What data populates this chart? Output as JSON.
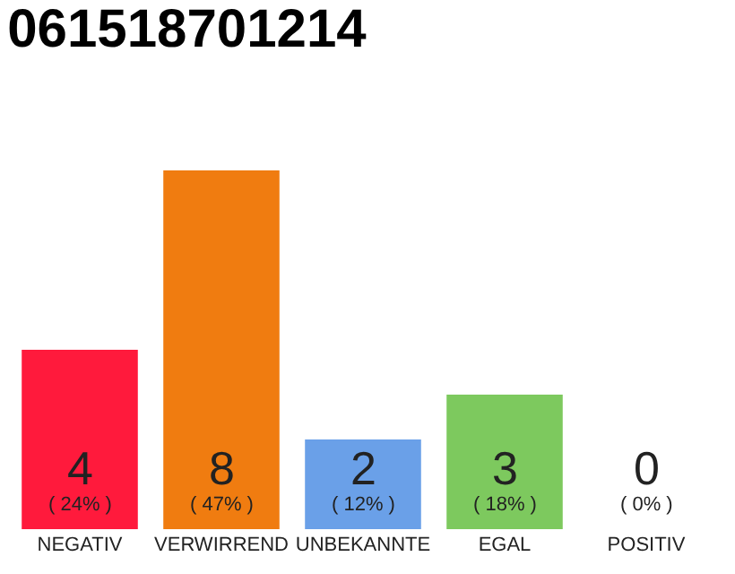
{
  "chart_data": {
    "type": "bar",
    "title": "061518701214",
    "categories": [
      "NEGATIV",
      "VERWIRREND",
      "UNBEKANNTE",
      "EGAL",
      "POSITIV"
    ],
    "values": [
      4,
      8,
      2,
      3,
      0
    ],
    "colors": [
      "#ff1a3c",
      "#f07c10",
      "#6aa0e8",
      "#7dc95e",
      "#eeeeee"
    ],
    "value_labels": [
      "4\n( 24% )",
      "8\n( 47% )",
      "2\n( 12% )",
      "3\n( 18% )",
      "0\n( 0% )"
    ],
    "ylim": [
      0,
      8
    ],
    "tick_labels": "x"
  }
}
